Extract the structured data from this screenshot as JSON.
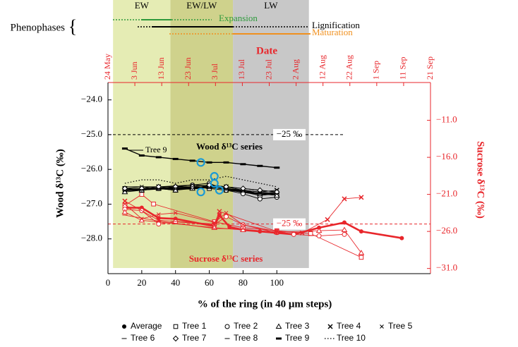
{
  "chart_data": {
    "type": "line",
    "phenophases": {
      "label": "Phenophases",
      "brace": "{",
      "items": [
        {
          "name": "Expansion",
          "color": "#2e9a3c"
        },
        {
          "name": "Lignification",
          "color": "#000000"
        },
        {
          "name": "Maturation",
          "color": "#f0901e"
        }
      ]
    },
    "phases": [
      {
        "label": "EW",
        "start": 3,
        "end": 37,
        "color": "#e5ecb4"
      },
      {
        "label": "EW/LW",
        "start": 37,
        "end": 74,
        "color": "#cfd28c"
      },
      {
        "label": "LW",
        "start": 74,
        "end": 119,
        "color": "#c8c8c8"
      }
    ],
    "top_axis": {
      "label": "Date",
      "categories": [
        "24 May",
        "3 Jun",
        "13 Jun",
        "23 Jun",
        "3 Jul",
        "13 Jul",
        "23 Jul",
        "2 Aug",
        "12 Aug",
        "22 Aug",
        "1 Sep",
        "11 Sep",
        "21 Sep"
      ]
    },
    "x_label": "% of the ring (in 40 μm steps)",
    "y_label": "Wood δ¹³C (‰)",
    "y2_label": "Sucrose δ¹³C (‰)",
    "xlim": [
      0,
      191
    ],
    "xticks": [
      0,
      20,
      40,
      60,
      80,
      100
    ],
    "ylim": [
      -29,
      -23.5
    ],
    "yticks": [
      {
        "value": -28,
        "label": "−28.0"
      },
      {
        "value": -27,
        "label": "−27.0"
      },
      {
        "value": -26,
        "label": "−26.0"
      },
      {
        "value": -25,
        "label": "−25.0"
      },
      {
        "value": -24,
        "label": "−24.0"
      }
    ],
    "y2lim": [
      -31.7,
      -5.9
    ],
    "y2ticks": [
      {
        "value": -31,
        "label": "−31.0"
      },
      {
        "value": -26,
        "label": "−26.0"
      },
      {
        "value": -21,
        "label": "−21.0"
      },
      {
        "value": -16,
        "label": "−16.0"
      },
      {
        "value": -11,
        "label": "−11.0"
      }
    ],
    "wood_color": "#000000",
    "sucrose_color": "#e8262b",
    "highlight_color": "#1a9ad6",
    "reference_lines": [
      {
        "axis": "y",
        "value": -25,
        "label": "−25 ‰",
        "x_end": 140
      },
      {
        "axis": "y2",
        "value": -25,
        "label": "−25 ‰"
      }
    ],
    "annotations": {
      "tree9": "Tree 9",
      "wood": "Wood δ¹³C series",
      "sucrose": "Sucrose δ¹³C series"
    },
    "highlights": {
      "x": [
        55,
        55,
        63,
        63,
        66
      ],
      "y": [
        -25.8,
        -26.65,
        -26.2,
        -26.4,
        -26.6
      ]
    },
    "series": [
      {
        "name": "Average",
        "marker": "filled-circle",
        "line": "thick",
        "x": [
          10,
          20,
          30,
          40,
          50,
          60,
          70,
          80,
          90,
          100
        ],
        "values": [
          -26.6,
          -26.58,
          -26.55,
          -26.55,
          -26.55,
          -26.5,
          -26.55,
          -26.65,
          -26.7,
          -26.7
        ],
        "sucrose_x": [
          10,
          20,
          30,
          40,
          63,
          66,
          72,
          80,
          90,
          100,
          110,
          125,
          140,
          150,
          174
        ],
        "sucrose_values": [
          -22.8,
          -22.8,
          -24.2,
          -24.3,
          -25.3,
          -23.8,
          -25.4,
          -25.8,
          -26.0,
          -26.2,
          -26.4,
          -25.5,
          -24.8,
          -26.0,
          -26.9
        ]
      },
      {
        "name": "Tree 1",
        "marker": "square",
        "line": "thin",
        "x": [
          10,
          20,
          30,
          40,
          50,
          60,
          70,
          80,
          90,
          100
        ],
        "values": [
          -26.55,
          -26.6,
          -26.55,
          -26.6,
          -26.5,
          -26.55,
          -26.6,
          -26.65,
          -26.75,
          -26.7
        ],
        "sucrose_x": [
          10,
          20,
          27,
          63,
          80,
          100,
          120,
          150
        ],
        "sucrose_values": [
          -22.5,
          -21.0,
          -22.3,
          -24.7,
          -25.5,
          -25.9,
          -26.3,
          -29.5
        ]
      },
      {
        "name": "Tree 2",
        "marker": "circle",
        "line": "thin",
        "x": [
          10,
          20,
          30,
          40,
          50,
          60,
          70,
          80,
          90,
          100
        ],
        "values": [
          -26.6,
          -26.6,
          -26.55,
          -26.5,
          -26.45,
          -26.4,
          -26.6,
          -26.7,
          -26.85,
          -26.8
        ],
        "sucrose_x": [
          10,
          20,
          30,
          40,
          63,
          70,
          80,
          100,
          110,
          125,
          140
        ],
        "sucrose_values": [
          -23.0,
          -23.2,
          -25.0,
          -24.7,
          -25.1,
          -24.0,
          -25.1,
          -26.0,
          -26.4,
          -26.6,
          -26.4
        ]
      },
      {
        "name": "Tree 3",
        "marker": "triangle",
        "line": "thin",
        "x": [
          10,
          20,
          30,
          40,
          50,
          60,
          70,
          80,
          90,
          100
        ],
        "values": [
          -26.65,
          -26.6,
          -26.55,
          -26.6,
          -26.55,
          -26.5,
          -26.55,
          -26.6,
          -26.7,
          -26.75
        ],
        "sucrose_x": [
          10,
          20,
          63,
          80,
          100,
          125,
          140,
          150
        ],
        "sucrose_values": [
          -23.4,
          -24.5,
          -25.5,
          -25.8,
          -26.1,
          -25.9,
          -25.8,
          -28.9
        ]
      },
      {
        "name": "Tree 4",
        "marker": "x",
        "line": "thin",
        "x": [
          10,
          20,
          30,
          40,
          50,
          60,
          70,
          80,
          90,
          100
        ],
        "values": [
          -26.6,
          -26.55,
          -26.5,
          -26.55,
          -26.5,
          -26.45,
          -26.5,
          -26.6,
          -26.65,
          -26.6
        ],
        "sucrose_x": [
          10,
          30,
          63,
          66,
          100,
          115,
          130,
          140,
          150
        ],
        "sucrose_values": [
          -21.9,
          -24.5,
          -25.0,
          -23.3,
          -26.0,
          -26.2,
          -24.4,
          -21.6,
          -21.4
        ]
      },
      {
        "name": "Tree 5",
        "marker": "cross",
        "line": "thin",
        "x": [
          10,
          20,
          30,
          40,
          50,
          60,
          70,
          80,
          90,
          100
        ],
        "values": [
          -26.55,
          -26.5,
          -26.55,
          -26.5,
          -26.45,
          -26.5,
          -26.55,
          -26.6,
          -26.7,
          -26.65
        ],
        "sucrose_x": [
          10,
          20,
          30,
          40,
          63,
          70,
          80,
          100
        ],
        "sucrose_values": [
          -22.3,
          -24.3,
          -23.7,
          -23.5,
          -24.8,
          -23.5,
          -25.1,
          -26.2
        ]
      },
      {
        "name": "Tree 6",
        "marker": "dash",
        "line": "thin",
        "x": [
          10,
          30,
          50,
          70,
          90,
          100
        ],
        "values": [
          -26.5,
          -26.5,
          -26.45,
          -26.5,
          -26.6,
          -26.65
        ],
        "sucrose_x": [
          10,
          30,
          63,
          80,
          100
        ],
        "sucrose_values": [
          -23.8,
          -24.6,
          -25.6,
          -25.7,
          -26.1
        ]
      },
      {
        "name": "Tree 7",
        "marker": "diamond",
        "line": "thin",
        "x": [
          10,
          20,
          30,
          40,
          50,
          60,
          70,
          80,
          90,
          100
        ],
        "values": [
          -26.55,
          -26.55,
          -26.5,
          -26.5,
          -26.5,
          -26.45,
          -26.5,
          -26.55,
          -26.6,
          -26.65
        ]
      },
      {
        "name": "Tree 8",
        "marker": "dash",
        "line": "thin",
        "x": [
          10,
          30,
          50,
          70,
          90,
          100
        ],
        "values": [
          -26.6,
          -26.55,
          -26.5,
          -26.55,
          -26.65,
          -26.7
        ]
      },
      {
        "name": "Tree 9",
        "marker": "dash-thick",
        "line": "solid",
        "x": [
          10,
          20,
          30,
          40,
          50,
          60,
          70,
          80,
          90,
          100
        ],
        "values": [
          -25.4,
          -25.6,
          -25.65,
          -25.7,
          -25.75,
          -25.8,
          -25.8,
          -25.85,
          -25.9,
          -25.95
        ]
      },
      {
        "name": "Tree 10",
        "marker": "none",
        "line": "dotted",
        "x": [
          10,
          20,
          30,
          40,
          50,
          60,
          70,
          80,
          90,
          100
        ],
        "values": [
          -26.4,
          -26.3,
          -26.3,
          -26.4,
          -26.3,
          -26.3,
          -26.2,
          -26.3,
          -26.4,
          -26.5
        ]
      }
    ]
  }
}
